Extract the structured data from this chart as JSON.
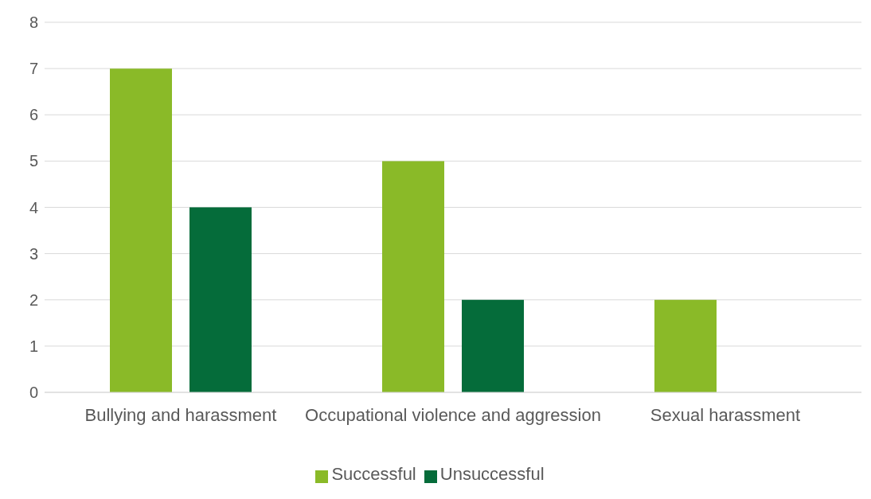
{
  "chart_data": {
    "type": "bar",
    "categories": [
      "Bullying and harassment",
      "Occupational violence and aggression",
      "Sexual harassment"
    ],
    "series": [
      {
        "name": "Successful",
        "color": "#8aba28",
        "values": [
          7,
          5,
          2
        ]
      },
      {
        "name": "Unsuccessful",
        "color": "#056c3a",
        "values": [
          4,
          2,
          0
        ]
      }
    ],
    "ylim": [
      0,
      8
    ],
    "yticks": [
      0,
      1,
      2,
      3,
      4,
      5,
      6,
      7,
      8
    ],
    "grid": "y",
    "legend": "bottom"
  }
}
